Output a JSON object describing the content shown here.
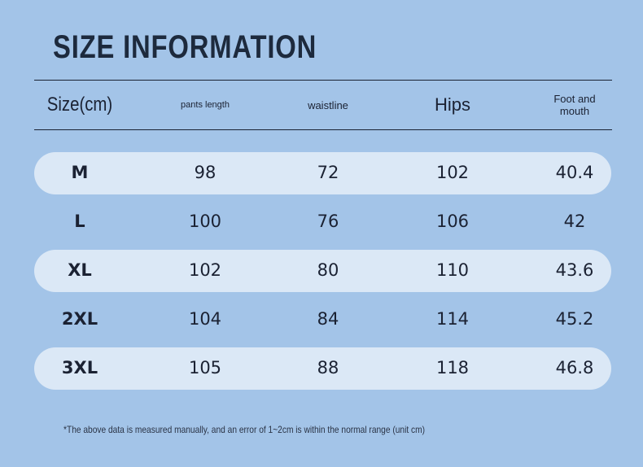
{
  "header": {
    "title": "SIZE INFORMATION"
  },
  "table": {
    "columns": [
      "Size(cm)",
      "pants length",
      "waistline",
      "Hips",
      "Foot and mouth"
    ],
    "rows": [
      [
        "M",
        "98",
        "72",
        "102",
        "40.4"
      ],
      [
        "L",
        "100",
        "76",
        "106",
        "42"
      ],
      [
        "XL",
        "102",
        "80",
        "110",
        "43.6"
      ],
      [
        "2XL",
        "104",
        "84",
        "114",
        "45.2"
      ],
      [
        "3XL",
        "105",
        "88",
        "118",
        "46.8"
      ]
    ]
  },
  "footnote": "*The above data is measured manually, and an error of 1~2cm is within the normal range (unit cm)"
}
